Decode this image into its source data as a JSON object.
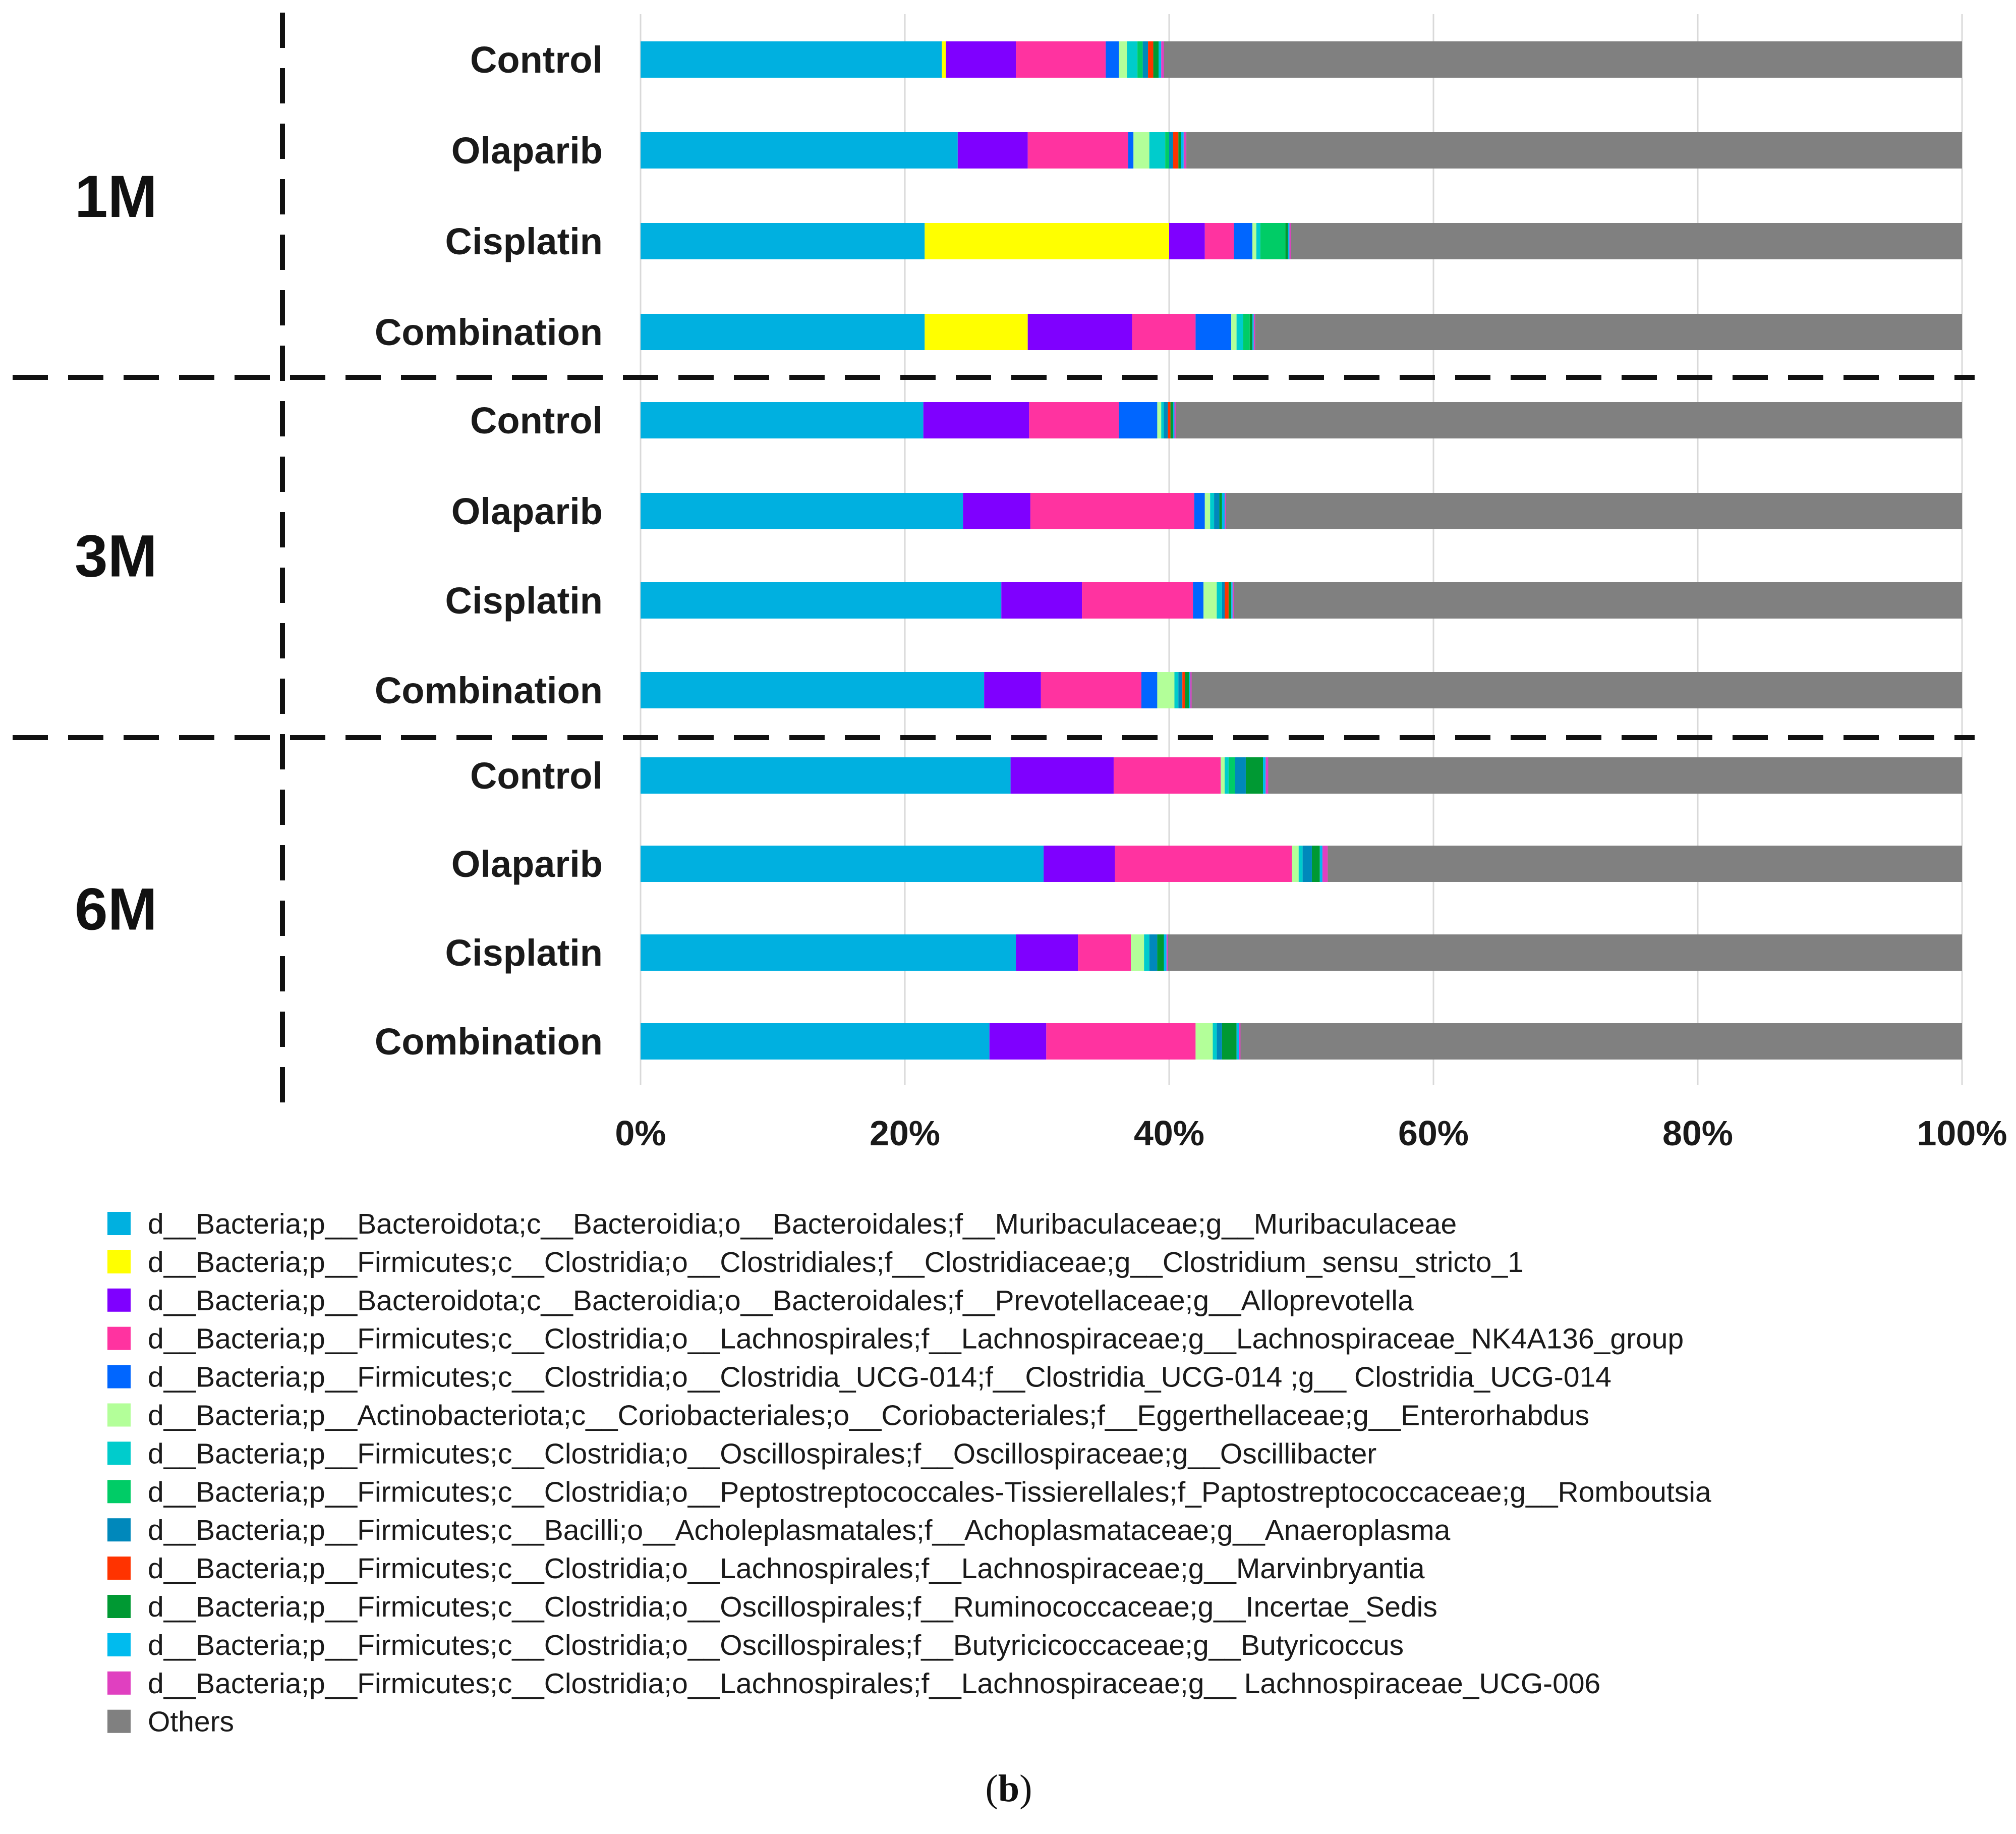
{
  "chart_data": {
    "type": "bar",
    "orientation": "horizontal",
    "stacked": "percent",
    "xlim": [
      0,
      100
    ],
    "x_ticks": [
      "0%",
      "20%",
      "40%",
      "60%",
      "80%",
      "100%"
    ],
    "grid": "vertical",
    "legend_position": "bottom",
    "caption": {
      "open": "(",
      "letter": "b",
      "close": ")"
    },
    "groups": [
      {
        "label": "1M",
        "categories": [
          "Control",
          "Olaparib",
          "Cisplatin",
          "Combination"
        ]
      },
      {
        "label": "3M",
        "categories": [
          "Control",
          "Olaparib",
          "Cisplatin",
          "Combination"
        ]
      },
      {
        "label": "6M",
        "categories": [
          "Control",
          "Olaparib",
          "Cisplatin",
          "Combination"
        ]
      }
    ],
    "series": [
      {
        "name": "d__Bacteria;p__Bacteroidota;c__Bacteroidia;o__Bacteroidales;f__Muribaculaceae;g__Muribaculaceae",
        "color": "#00B0E0",
        "values": [
          22.8,
          24.0,
          21.5,
          21.5,
          21.4,
          24.4,
          27.3,
          26.0,
          28.0,
          30.5,
          28.4,
          26.4
        ]
      },
      {
        "name": "d__Bacteria;p__Firmicutes;c__Clostridia;o__Clostridiales;f__Clostridiaceae;g__Clostridium_sensu_stricto_1",
        "color": "#FFFF00",
        "values": [
          0.3,
          0.0,
          18.5,
          7.8,
          0.0,
          0.0,
          0.0,
          0.0,
          0.0,
          0.0,
          0.0,
          0.0
        ]
      },
      {
        "name": "d__Bacteria;p__Bacteroidota;c__Bacteroidia;o__Bacteroidales;f__Prevotellaceae;g__Alloprevotella",
        "color": "#7F00FF",
        "values": [
          5.3,
          5.3,
          2.7,
          7.9,
          8.0,
          5.1,
          6.1,
          4.3,
          7.8,
          5.4,
          4.7,
          4.3
        ]
      },
      {
        "name": "d__Bacteria;p__Firmicutes;c__Clostridia;o__Lachnospirales;f__Lachnospiraceae;g__Lachnospiraceae_NK4A136_group",
        "color": "#FF33A0",
        "values": [
          6.8,
          7.6,
          2.2,
          4.8,
          6.8,
          12.4,
          8.4,
          7.6,
          8.1,
          13.4,
          4.0,
          11.3
        ]
      },
      {
        "name": "d__Bacteria;p__Firmicutes;c__Clostridia;o__Clostridia_UCG-014;f__Clostridia_UCG-014 ;g__ Clostridia_UCG-014",
        "color": "#0066FF",
        "values": [
          1.0,
          0.4,
          1.4,
          2.7,
          2.9,
          0.8,
          0.8,
          1.2,
          0.0,
          0.0,
          0.0,
          0.0
        ]
      },
      {
        "name": "d__Bacteria;p__Actinobacteriota;c__Coriobacteriales;o__Coriobacteriales;f__Eggerthellaceae;g__Enterorhabdus",
        "color": "#B3FF99",
        "values": [
          0.6,
          1.2,
          0.3,
          0.4,
          0.3,
          0.4,
          1.0,
          1.3,
          0.3,
          0.5,
          1.0,
          1.3
        ]
      },
      {
        "name": "d__Bacteria;p__Firmicutes;c__Clostridia;o__Oscillospirales;f__Oscillospiraceae;g__Oscillibacter",
        "color": "#00CCCC",
        "values": [
          0.8,
          1.2,
          0.3,
          0.5,
          0.2,
          0.3,
          0.4,
          0.3,
          0.3,
          0.3,
          0.4,
          0.3
        ]
      },
      {
        "name": "d__Bacteria;p__Firmicutes;c__Clostridia;o__Peptostreptococcales-Tissierellales;f_Paptostreptococcaceae;g__Romboutsia",
        "color": "#00CC66",
        "values": [
          0.4,
          0.3,
          1.9,
          0.5,
          0.0,
          0.0,
          0.0,
          0.0,
          0.5,
          0.0,
          0.0,
          0.0
        ]
      },
      {
        "name": "d__Bacteria;p__Firmicutes;c__Bacilli;o__Acholeplasmatales;f__Achoplasmataceae;g__Anaeroplasma",
        "color": "#0088BB",
        "values": [
          0.4,
          0.3,
          0.0,
          0.0,
          0.3,
          0.4,
          0.2,
          0.3,
          0.8,
          0.7,
          0.6,
          0.4
        ]
      },
      {
        "name": "d__Bacteria;p__Firmicutes;c__Clostridia;o__Lachnospirales;f__Lachnospiraceae;g__Marvinbryantia",
        "color": "#FF3300",
        "values": [
          0.4,
          0.4,
          0.0,
          0.0,
          0.2,
          0.0,
          0.3,
          0.2,
          0.0,
          0.0,
          0.0,
          0.0
        ]
      },
      {
        "name": "d__Bacteria;p__Firmicutes;c__Clostridia;o__Oscillospirales;f__Ruminococcaceae;g__Incertae_Sedis",
        "color": "#009933",
        "values": [
          0.4,
          0.2,
          0.2,
          0.2,
          0.2,
          0.2,
          0.2,
          0.3,
          1.3,
          0.6,
          0.5,
          1.1
        ]
      },
      {
        "name": "d__Bacteria;p__Firmicutes;c__Clostridia;o__Oscillospirales;f__Butyricicoccaceae;g__Butyricoccus",
        "color": "#00BBEE",
        "values": [
          0.2,
          0.2,
          0.1,
          0.1,
          0.1,
          0.2,
          0.1,
          0.1,
          0.2,
          0.2,
          0.2,
          0.2
        ]
      },
      {
        "name": "d__Bacteria;p__Firmicutes;c__Clostridia;o__Lachnospirales;f__Lachnospiraceae;g__ Lachnospiraceae_UCG-006",
        "color": "#E040C0",
        "values": [
          0.2,
          0.2,
          0.1,
          0.1,
          0.1,
          0.1,
          0.1,
          0.1,
          0.2,
          0.4,
          0.1,
          0.1
        ]
      },
      {
        "name": "Others",
        "color": "#808080",
        "values": [
          60.4,
          58.7,
          50.8,
          53.5,
          59.5,
          55.7,
          55.1,
          58.3,
          52.5,
          48.0,
          60.1,
          54.6
        ]
      }
    ]
  }
}
